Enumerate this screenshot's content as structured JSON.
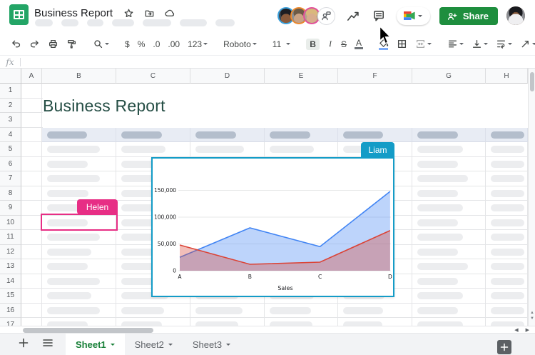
{
  "header": {
    "doc_title": "Business Report",
    "share_label": "Share",
    "collaborators": [
      {
        "name": "collaborator-1",
        "ring_color": "#3BA0DB"
      },
      {
        "name": "collaborator-2",
        "ring_color": "#EE8A2E"
      },
      {
        "name": "collaborator-3",
        "ring_color": "#E5509B"
      }
    ]
  },
  "toolbar": {
    "currency_label": "$",
    "percent_label": "%",
    "decrease_decimal_label": ".0",
    "increase_decimal_label": ".00",
    "more_formats_label": "123",
    "font_name": "Roboto",
    "font_size": "11",
    "bold_label": "B",
    "italic_label": "I",
    "strikethrough_label": "S",
    "text_color_label": "A"
  },
  "formula_bar": {
    "fx_label": "fx"
  },
  "grid": {
    "sheet_title": "Business Report",
    "title_color": "#254E45",
    "columns": [
      "A",
      "B",
      "C",
      "D",
      "E",
      "F",
      "G",
      "H"
    ],
    "row_count": 17,
    "skeleton_rows": {
      "4": [
        56,
        57,
        57,
        57,
        56,
        57,
        50
      ],
      "5": [
        74,
        62,
        68,
        62,
        58,
        64,
        52
      ],
      "6": [
        57,
        55,
        60,
        58,
        55,
        57,
        50
      ],
      "7": [
        74,
        66,
        62,
        60,
        57,
        71,
        52
      ],
      "8": [
        58,
        60,
        66,
        57,
        55,
        57,
        50
      ],
      "9": [
        57,
        57,
        60,
        62,
        58,
        64,
        52
      ],
      "10": [
        57,
        58,
        62,
        58,
        56,
        57,
        50
      ],
      "11": [
        74,
        60,
        60,
        60,
        57,
        64,
        52
      ],
      "12": [
        62,
        57,
        64,
        58,
        55,
        57,
        50
      ],
      "13": [
        57,
        62,
        60,
        60,
        57,
        71,
        52
      ],
      "14": [
        74,
        58,
        62,
        57,
        55,
        57,
        50
      ],
      "15": [
        62,
        66,
        60,
        62,
        58,
        64,
        52
      ],
      "16": [
        74,
        60,
        66,
        58,
        56,
        57,
        50
      ],
      "17": [
        57,
        57,
        60,
        60,
        55,
        64,
        52
      ]
    }
  },
  "selections": {
    "liam": {
      "name": "Liam",
      "color": "#149CC7"
    },
    "helen": {
      "name": "Helen",
      "color": "#E72E85"
    }
  },
  "chart_data": {
    "type": "area",
    "categories": [
      "A",
      "B",
      "C",
      "D"
    ],
    "series": [
      {
        "name": "series-blue",
        "color": "#4285F4",
        "fill": "rgba(66,133,244,0.35)",
        "values": [
          25000,
          80000,
          45000,
          148000
        ]
      },
      {
        "name": "series-red",
        "color": "#DB4437",
        "fill": "rgba(219,68,55,0.35)",
        "values": [
          48000,
          12000,
          16000,
          75000
        ]
      }
    ],
    "xlabel": "Sales",
    "ylim": [
      0,
      160000
    ],
    "yticks": [
      0,
      50000,
      100000,
      150000
    ],
    "ytick_labels": [
      "0",
      "50,000",
      "100,000",
      "150,000"
    ],
    "grid": true,
    "legend": false
  },
  "tabs": {
    "items": [
      {
        "label": "Sheet1",
        "active": true
      },
      {
        "label": "Sheet2",
        "active": false
      },
      {
        "label": "Sheet3",
        "active": false
      }
    ]
  },
  "accent_colors": {
    "sheets_logo_green": "#23A566",
    "share_button_green": "#1E8E3E",
    "active_tab_green": "#188038",
    "header_band_blue": "#E8ECF4"
  }
}
